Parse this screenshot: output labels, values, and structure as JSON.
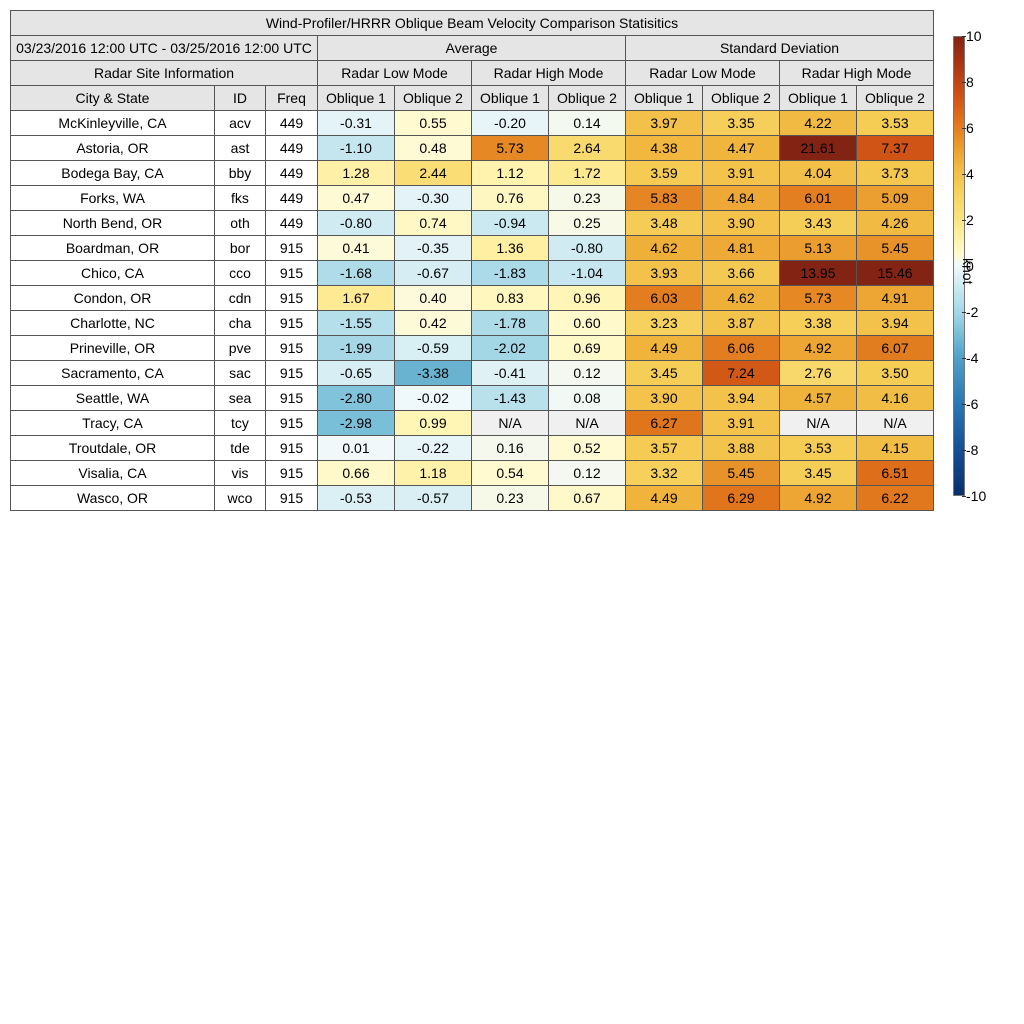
{
  "title": "Wind-Profiler/HRRR Oblique Beam Velocity Comparison Statisitics",
  "date_range": "03/23/2016 12:00 UTC - 03/25/2016 12:00 UTC",
  "groups": {
    "average": "Average",
    "std": "Standard Deviation",
    "site_info": "Radar Site Information"
  },
  "modes": {
    "low": "Radar Low Mode",
    "high": "Radar High Mode"
  },
  "columns": {
    "city": "City & State",
    "id": "ID",
    "freq": "Freq",
    "o1": "Oblique 1",
    "o2": "Oblique 2"
  },
  "colorbar": {
    "unit": "knot",
    "min": -10,
    "max": 10,
    "ticks": [
      "10",
      "8",
      "6",
      "4",
      "2",
      "0",
      "-2",
      "-4",
      "-6",
      "-8",
      "-10"
    ]
  },
  "chart_data": {
    "type": "table",
    "unit": "knot",
    "columns": [
      "Avg Low O1",
      "Avg Low O2",
      "Avg High O1",
      "Avg High O2",
      "Std Low O1",
      "Std Low O2",
      "Std High O1",
      "Std High O2"
    ],
    "rows": [
      {
        "city": "McKinleyville, CA",
        "id": "acv",
        "freq": "449",
        "values": [
          "-0.31",
          "0.55",
          "-0.20",
          "0.14",
          "3.97",
          "3.35",
          "4.22",
          "3.53"
        ]
      },
      {
        "city": "Astoria, OR",
        "id": "ast",
        "freq": "449",
        "values": [
          "-1.10",
          "0.48",
          "5.73",
          "2.64",
          "4.38",
          "4.47",
          "21.61",
          "7.37"
        ]
      },
      {
        "city": "Bodega Bay, CA",
        "id": "bby",
        "freq": "449",
        "values": [
          "1.28",
          "2.44",
          "1.12",
          "1.72",
          "3.59",
          "3.91",
          "4.04",
          "3.73"
        ]
      },
      {
        "city": "Forks, WA",
        "id": "fks",
        "freq": "449",
        "values": [
          "0.47",
          "-0.30",
          "0.76",
          "0.23",
          "5.83",
          "4.84",
          "6.01",
          "5.09"
        ]
      },
      {
        "city": "North Bend, OR",
        "id": "oth",
        "freq": "449",
        "values": [
          "-0.80",
          "0.74",
          "-0.94",
          "0.25",
          "3.48",
          "3.90",
          "3.43",
          "4.26"
        ]
      },
      {
        "city": "Boardman, OR",
        "id": "bor",
        "freq": "915",
        "values": [
          "0.41",
          "-0.35",
          "1.36",
          "-0.80",
          "4.62",
          "4.81",
          "5.13",
          "5.45"
        ]
      },
      {
        "city": "Chico, CA",
        "id": "cco",
        "freq": "915",
        "values": [
          "-1.68",
          "-0.67",
          "-1.83",
          "-1.04",
          "3.93",
          "3.66",
          "13.95",
          "15.46"
        ]
      },
      {
        "city": "Condon, OR",
        "id": "cdn",
        "freq": "915",
        "values": [
          "1.67",
          "0.40",
          "0.83",
          "0.96",
          "6.03",
          "4.62",
          "5.73",
          "4.91"
        ]
      },
      {
        "city": "Charlotte, NC",
        "id": "cha",
        "freq": "915",
        "values": [
          "-1.55",
          "0.42",
          "-1.78",
          "0.60",
          "3.23",
          "3.87",
          "3.38",
          "3.94"
        ]
      },
      {
        "city": "Prineville, OR",
        "id": "pve",
        "freq": "915",
        "values": [
          "-1.99",
          "-0.59",
          "-2.02",
          "0.69",
          "4.49",
          "6.06",
          "4.92",
          "6.07"
        ]
      },
      {
        "city": "Sacramento, CA",
        "id": "sac",
        "freq": "915",
        "values": [
          "-0.65",
          "-3.38",
          "-0.41",
          "0.12",
          "3.45",
          "7.24",
          "2.76",
          "3.50"
        ]
      },
      {
        "city": "Seattle, WA",
        "id": "sea",
        "freq": "915",
        "values": [
          "-2.80",
          "-0.02",
          "-1.43",
          "0.08",
          "3.90",
          "3.94",
          "4.57",
          "4.16"
        ]
      },
      {
        "city": "Tracy, CA",
        "id": "tcy",
        "freq": "915",
        "values": [
          "-2.98",
          "0.99",
          "N/A",
          "N/A",
          "6.27",
          "3.91",
          "N/A",
          "N/A"
        ]
      },
      {
        "city": "Troutdale, OR",
        "id": "tde",
        "freq": "915",
        "values": [
          "0.01",
          "-0.22",
          "0.16",
          "0.52",
          "3.57",
          "3.88",
          "3.53",
          "4.15"
        ]
      },
      {
        "city": "Visalia, CA",
        "id": "vis",
        "freq": "915",
        "values": [
          "0.66",
          "1.18",
          "0.54",
          "0.12",
          "3.32",
          "5.45",
          "3.45",
          "6.51"
        ]
      },
      {
        "city": "Wasco, OR",
        "id": "wco",
        "freq": "915",
        "values": [
          "-0.53",
          "-0.57",
          "0.23",
          "0.67",
          "4.49",
          "6.29",
          "4.92",
          "6.22"
        ]
      }
    ]
  }
}
